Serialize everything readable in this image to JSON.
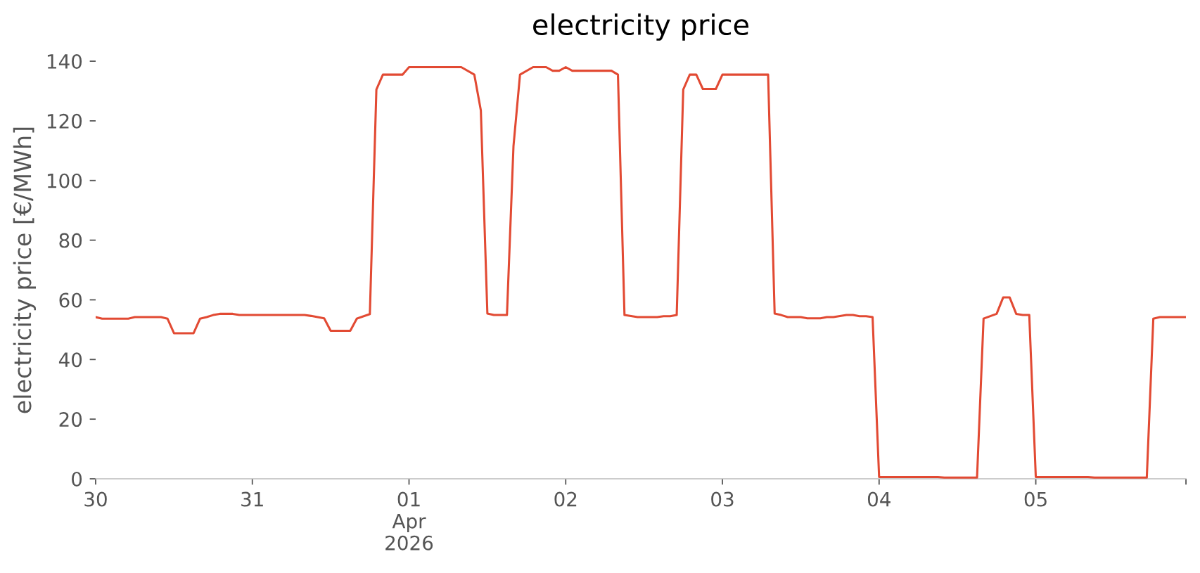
{
  "chart_data": {
    "type": "line",
    "title": "electricity price",
    "ylabel": "electricity price [€/MWh]",
    "x": [
      "2026-03-30T00:00",
      "2026-03-30T01:00",
      "2026-03-30T05:00",
      "2026-03-30T06:00",
      "2026-03-30T10:00",
      "2026-03-30T11:00",
      "2026-03-30T12:00",
      "2026-03-30T15:00",
      "2026-03-30T16:00",
      "2026-03-30T17:00",
      "2026-03-30T18:00",
      "2026-03-30T19:00",
      "2026-03-30T21:00",
      "2026-03-30T22:00",
      "2026-03-31T08:00",
      "2026-03-31T09:00",
      "2026-03-31T10:00",
      "2026-03-31T11:00",
      "2026-03-31T12:00",
      "2026-03-31T15:00",
      "2026-03-31T16:00",
      "2026-03-31T18:00",
      "2026-03-31T19:00",
      "2026-03-31T20:00",
      "2026-03-31T23:00",
      "2026-04-01T00:00",
      "2026-04-01T08:00",
      "2026-04-01T10:00",
      "2026-04-01T11:00",
      "2026-04-01T12:00",
      "2026-04-01T13:00",
      "2026-04-01T15:00",
      "2026-04-01T16:00",
      "2026-04-01T17:00",
      "2026-04-01T19:00",
      "2026-04-01T21:00",
      "2026-04-01T22:00",
      "2026-04-01T23:00",
      "2026-04-02T00:00",
      "2026-04-02T01:00",
      "2026-04-02T07:00",
      "2026-04-02T08:00",
      "2026-04-02T09:00",
      "2026-04-02T11:00",
      "2026-04-02T14:00",
      "2026-04-02T15:00",
      "2026-04-02T16:00",
      "2026-04-02T17:00",
      "2026-04-02T18:00",
      "2026-04-02T19:00",
      "2026-04-02T20:00",
      "2026-04-02T21:00",
      "2026-04-02T23:00",
      "2026-04-03T00:00",
      "2026-04-03T07:00",
      "2026-04-03T08:00",
      "2026-04-03T09:00",
      "2026-04-03T10:00",
      "2026-04-03T12:00",
      "2026-04-03T13:00",
      "2026-04-03T15:00",
      "2026-04-03T16:00",
      "2026-04-03T17:00",
      "2026-04-03T19:00",
      "2026-04-03T20:00",
      "2026-04-03T21:00",
      "2026-04-03T22:00",
      "2026-04-03T23:00",
      "2026-04-04T00:00",
      "2026-04-04T09:00",
      "2026-04-04T10:00",
      "2026-04-04T15:00",
      "2026-04-04T16:00",
      "2026-04-04T18:00",
      "2026-04-04T19:00",
      "2026-04-04T20:00",
      "2026-04-04T21:00",
      "2026-04-04T22:00",
      "2026-04-04T23:00",
      "2026-04-05T00:00",
      "2026-04-05T08:00",
      "2026-04-05T09:00",
      "2026-04-05T17:00",
      "2026-04-05T18:00",
      "2026-04-05T19:00",
      "2026-04-05T23:00"
    ],
    "series": [
      {
        "color": "#e24a33",
        "values": [
          54.2,
          53.7,
          53.7,
          54.2,
          54.2,
          53.7,
          48.8,
          48.8,
          53.7,
          54.2,
          54.9,
          55.3,
          55.3,
          54.9,
          54.9,
          54.6,
          54.2,
          53.8,
          49.6,
          49.6,
          53.7,
          55.2,
          130.5,
          135.5,
          135.5,
          138.0,
          138.0,
          135.5,
          123.5,
          55.4,
          54.9,
          54.9,
          111.6,
          135.5,
          138.0,
          138.0,
          136.8,
          136.8,
          138.0,
          136.8,
          136.8,
          135.5,
          54.9,
          54.2,
          54.2,
          54.5,
          54.5,
          54.9,
          130.5,
          135.5,
          135.5,
          130.7,
          130.7,
          135.5,
          135.5,
          55.4,
          54.9,
          54.2,
          54.2,
          53.8,
          53.8,
          54.2,
          54.2,
          54.9,
          54.9,
          54.5,
          54.5,
          54.2,
          0.6,
          0.6,
          0.4,
          0.4,
          53.7,
          55.3,
          60.8,
          60.8,
          55.3,
          54.9,
          54.9,
          0.6,
          0.6,
          0.4,
          0.4,
          53.7,
          54.2,
          54.2
        ]
      }
    ],
    "xlim": [
      "2026-03-30T00:00",
      "2026-04-05T23:00"
    ],
    "xticks": [
      {
        "value": "2026-03-30T00:00",
        "label": "30"
      },
      {
        "value": "2026-03-31T00:00",
        "label": "31"
      },
      {
        "value": "2026-04-01T00:00",
        "label": "01\nApr\n2026"
      },
      {
        "value": "2026-04-02T00:00",
        "label": "02"
      },
      {
        "value": "2026-04-03T00:00",
        "label": "03"
      },
      {
        "value": "2026-04-04T00:00",
        "label": "04"
      },
      {
        "value": "2026-04-05T00:00",
        "label": "05"
      },
      {
        "value": "2026-04-05T23:00",
        "label": null
      }
    ],
    "ylim": [
      0,
      140
    ],
    "yticks": [
      0,
      20,
      40,
      60,
      80,
      100,
      120,
      140
    ]
  }
}
